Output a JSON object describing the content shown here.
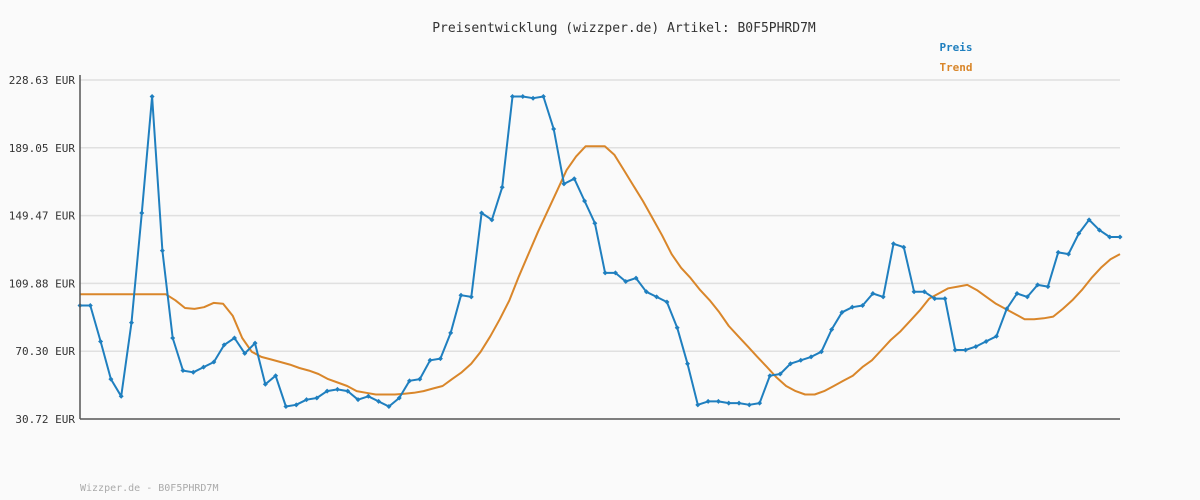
{
  "chart_data": {
    "type": "line",
    "title": "Preisentwicklung (wizzper.de) Artikel: B0F5PHRD7M",
    "footer": "Wizzper.de - B0F5PHRD7M",
    "y_ticks": [
      "30.72 EUR",
      "70.30 EUR",
      "109.88 EUR",
      "149.47 EUR",
      "189.05 EUR",
      "228.63 EUR"
    ],
    "ylim": [
      30.72,
      228.63
    ],
    "grid": true,
    "legend": "top-right",
    "colors": {
      "Preis": "#1f7fbf",
      "Trend": "#d9862a",
      "grid": "#e0e0e0",
      "axis": "#555555"
    },
    "series": [
      {
        "name": "Preis",
        "marker": "diamond",
        "values": [
          97,
          97,
          76,
          54,
          44,
          87,
          151,
          219,
          129,
          78,
          59,
          58,
          61,
          64,
          74,
          78,
          69,
          75,
          51,
          56,
          38,
          39,
          42,
          43,
          47,
          48,
          47,
          42,
          44,
          41,
          38,
          43,
          53,
          54,
          65,
          66,
          81,
          103,
          102,
          151,
          147,
          166,
          219,
          219,
          218,
          219,
          200,
          168,
          171,
          158,
          145,
          116,
          116,
          111,
          113,
          105,
          102,
          99,
          84,
          63,
          39,
          41,
          41,
          40,
          40,
          39,
          40,
          56,
          57,
          63,
          65,
          67,
          70,
          83,
          93,
          96,
          97,
          104,
          102,
          133,
          131,
          105,
          105,
          101,
          101,
          71,
          71,
          73,
          76,
          79,
          95,
          104,
          102,
          109,
          108,
          128,
          127,
          139,
          147,
          141,
          137,
          137
        ]
      },
      {
        "name": "Trend",
        "values": [
          103.5,
          103.5,
          103.5,
          103.5,
          103.5,
          103.5,
          103.5,
          103.5,
          103.5,
          103.5,
          100,
          95.5,
          95,
          96,
          98.5,
          98,
          91,
          78,
          70,
          67,
          65.5,
          64,
          62.5,
          60.5,
          59,
          57,
          54,
          52,
          50,
          47,
          46,
          45,
          45,
          45,
          45.5,
          46,
          47,
          48.5,
          50,
          54,
          58,
          63,
          70,
          79,
          89,
          100,
          114,
          127,
          140,
          152,
          164,
          176,
          184,
          190,
          190,
          190,
          185,
          176,
          167,
          158,
          148,
          138,
          127,
          119,
          113,
          106,
          100,
          93,
          85,
          79,
          73,
          67,
          61,
          55,
          50,
          47,
          45,
          45,
          47,
          50,
          53,
          56,
          61,
          65,
          71,
          77,
          82,
          88,
          94,
          101,
          104,
          107,
          108,
          109,
          106,
          102,
          98,
          95,
          92,
          89,
          89,
          89.5,
          90.5,
          95,
          100,
          106,
          113,
          119,
          124,
          127
        ]
      }
    ]
  }
}
